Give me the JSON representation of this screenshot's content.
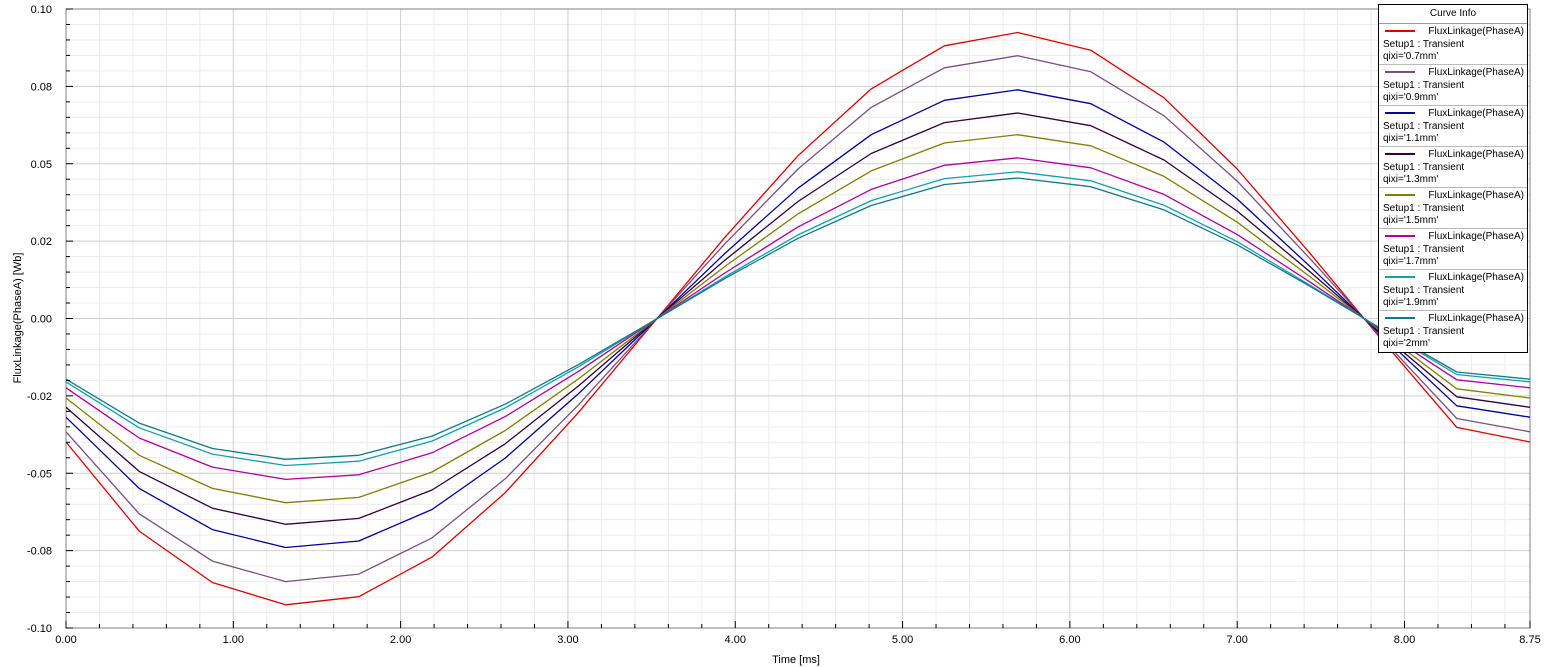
{
  "chart_data": {
    "type": "line",
    "title": "",
    "xlabel": "Time [ms]",
    "ylabel": "FluxLinkage(PhaseA) [Wb]",
    "xlim": [
      0,
      8.75
    ],
    "ylim": [
      -0.1,
      0.1
    ],
    "xticks": [
      "0.00",
      "1.00",
      "2.00",
      "3.00",
      "4.00",
      "5.00",
      "6.00",
      "7.00",
      "8.00",
      "8.75"
    ],
    "xtick_values": [
      0,
      1,
      2,
      3,
      4,
      5,
      6,
      7,
      8,
      8.75
    ],
    "yticks": [
      "0.10",
      "0.08",
      "0.05",
      "0.02",
      "0.00",
      "-0.02",
      "-0.05",
      "-0.08",
      "-0.10"
    ],
    "ytick_values": [
      0.1,
      0.075,
      0.05,
      0.025,
      0,
      -0.025,
      -0.05,
      -0.075,
      -0.1
    ],
    "grid": true,
    "legend_position": "top-right",
    "legend_title": "Curve Info",
    "x": [
      0,
      0.4375,
      0.875,
      1.3125,
      1.75,
      2.1875,
      2.625,
      3.0625,
      3.5,
      3.9375,
      4.375,
      4.8125,
      5.25,
      5.6875,
      6.125,
      6.5625,
      7.0,
      7.4375,
      7.875,
      8.3125,
      8.75
    ],
    "series": [
      {
        "name": "FluxLinkage(PhaseA)",
        "setup": "Setup1 : Transient",
        "param": "qixi='0.7mm'",
        "color": "#e00000",
        "amplitude": 0.0925,
        "values": [
          -0.0399,
          -0.0687,
          -0.0853,
          -0.0925,
          -0.0899,
          -0.0771,
          -0.0563,
          -0.0304,
          -0.0021,
          0.0262,
          0.0526,
          0.0742,
          0.0881,
          0.0924,
          0.0867,
          0.0713,
          0.0483,
          0.0209,
          -0.0076,
          -0.0352,
          -0.0399
        ]
      },
      {
        "name": "FluxLinkage(PhaseA)",
        "setup": "Setup1 : Transient",
        "param": "qixi='0.9mm'",
        "color": "#7b4f80",
        "amplitude": 0.085,
        "values": [
          -0.0366,
          -0.0631,
          -0.0784,
          -0.085,
          -0.0826,
          -0.0709,
          -0.0518,
          -0.0279,
          -0.0019,
          0.0241,
          0.0483,
          0.0682,
          0.081,
          0.0849,
          0.0797,
          0.0655,
          0.0444,
          0.0192,
          -0.007,
          -0.0323,
          -0.0366
        ]
      },
      {
        "name": "FluxLinkage(PhaseA)",
        "setup": "Setup1 : Transient",
        "param": "qixi='1.1mm'",
        "color": "#0000a0",
        "amplitude": 0.074,
        "values": [
          -0.0319,
          -0.0549,
          -0.0682,
          -0.074,
          -0.0719,
          -0.0617,
          -0.0451,
          -0.0243,
          -0.0017,
          0.021,
          0.0421,
          0.0594,
          0.0705,
          0.0739,
          0.0694,
          0.057,
          0.0386,
          0.0167,
          -0.0061,
          -0.0282,
          -0.0319
        ]
      },
      {
        "name": "FluxLinkage(PhaseA)",
        "setup": "Setup1 : Transient",
        "param": "qixi='1.3mm'",
        "color": "#300040",
        "amplitude": 0.0665,
        "values": [
          -0.0287,
          -0.0494,
          -0.0613,
          -0.0665,
          -0.0646,
          -0.0554,
          -0.0405,
          -0.0218,
          -0.0015,
          0.0188,
          0.0378,
          0.0533,
          0.0633,
          0.0664,
          0.0623,
          0.0512,
          0.0347,
          0.015,
          -0.0055,
          -0.0253,
          -0.0287
        ]
      },
      {
        "name": "FluxLinkage(PhaseA)",
        "setup": "Setup1 : Transient",
        "param": "qixi='1.5mm'",
        "color": "#808000",
        "amplitude": 0.0595,
        "values": [
          -0.0257,
          -0.0442,
          -0.0549,
          -0.0595,
          -0.0578,
          -0.0496,
          -0.0362,
          -0.0195,
          -0.0014,
          0.0168,
          0.0338,
          0.0477,
          0.0567,
          0.0594,
          0.0558,
          0.0459,
          0.0311,
          0.0134,
          -0.0049,
          -0.0227,
          -0.0257
        ]
      },
      {
        "name": "FluxLinkage(PhaseA)",
        "setup": "Setup1 : Transient",
        "param": "qixi='1.7mm'",
        "color": "#b000a0",
        "amplitude": 0.052,
        "values": [
          -0.0224,
          -0.0386,
          -0.048,
          -0.052,
          -0.0505,
          -0.0434,
          -0.0317,
          -0.0171,
          -0.0012,
          0.0147,
          0.0296,
          0.0417,
          0.0495,
          0.0519,
          0.0487,
          0.0401,
          0.0271,
          0.0117,
          -0.0043,
          -0.0198,
          -0.0224
        ]
      },
      {
        "name": "FluxLinkage(PhaseA)",
        "setup": "Setup1 : Transient",
        "param": "qixi='1.9mm'",
        "color": "#10a0b0",
        "amplitude": 0.0475,
        "values": [
          -0.0205,
          -0.0353,
          -0.0438,
          -0.0475,
          -0.0461,
          -0.0396,
          -0.0289,
          -0.0156,
          -0.0011,
          0.0134,
          0.027,
          0.0381,
          0.0452,
          0.0474,
          0.0445,
          0.0366,
          0.0248,
          0.0107,
          -0.0039,
          -0.0181,
          -0.0205
        ]
      },
      {
        "name": "FluxLinkage(PhaseA)",
        "setup": "Setup1 : Transient",
        "param": "qixi='2mm'",
        "color": "#107a88",
        "amplitude": 0.0455,
        "values": [
          -0.0196,
          -0.0338,
          -0.042,
          -0.0455,
          -0.0442,
          -0.038,
          -0.0277,
          -0.0149,
          -0.0011,
          0.0129,
          0.0259,
          0.0365,
          0.0433,
          0.0454,
          0.0426,
          0.0351,
          0.0238,
          0.0103,
          -0.0037,
          -0.0173,
          -0.0196
        ]
      }
    ]
  }
}
